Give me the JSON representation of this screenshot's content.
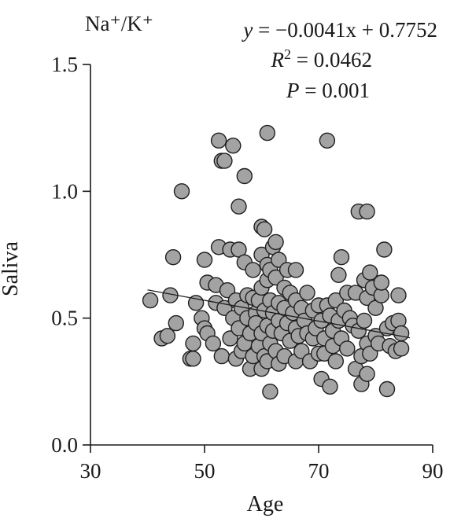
{
  "chart_data": {
    "type": "scatter",
    "panel_label": "Na⁺/K⁺",
    "xlabel": "Age",
    "ylabel": "Saliva",
    "xlim": [
      30,
      90
    ],
    "ylim": [
      0.0,
      1.5
    ],
    "x_ticks": [
      "30",
      "50",
      "70",
      "90"
    ],
    "y_ticks": [
      "0.0",
      "0.5",
      "1.0",
      "1.5"
    ],
    "annotations": {
      "equation": "y = −0.0041x + 0.7752",
      "r2": "R2 = 0.0462",
      "p": "P = 0.001"
    },
    "regression": {
      "slope": -0.0041,
      "intercept": 0.7752,
      "x_range": [
        40,
        86
      ]
    },
    "colors": {
      "marker_fill": "#a3a3a3",
      "marker_edge": "#1f1f1f",
      "line": "#1f1f1f",
      "axis": "#1a1a1a"
    },
    "grid": false,
    "points": [
      [
        40.5,
        0.57
      ],
      [
        42.5,
        0.42
      ],
      [
        43.5,
        0.43
      ],
      [
        44.0,
        0.59
      ],
      [
        44.5,
        0.74
      ],
      [
        45.0,
        0.48
      ],
      [
        46.0,
        1.0
      ],
      [
        47.5,
        0.34
      ],
      [
        48.0,
        0.34
      ],
      [
        48.0,
        0.4
      ],
      [
        48.5,
        0.56
      ],
      [
        49.5,
        0.5
      ],
      [
        50.0,
        0.46
      ],
      [
        50.0,
        0.73
      ],
      [
        50.5,
        0.64
      ],
      [
        50.5,
        0.44
      ],
      [
        51.5,
        0.4
      ],
      [
        52.0,
        0.63
      ],
      [
        52.0,
        0.56
      ],
      [
        52.5,
        0.78
      ],
      [
        52.5,
        1.2
      ],
      [
        53.0,
        1.12
      ],
      [
        53.0,
        0.35
      ],
      [
        53.5,
        1.12
      ],
      [
        53.5,
        0.54
      ],
      [
        54.0,
        0.61
      ],
      [
        54.5,
        0.77
      ],
      [
        54.5,
        0.42
      ],
      [
        55.0,
        1.18
      ],
      [
        55.0,
        0.5
      ],
      [
        55.5,
        0.34
      ],
      [
        55.5,
        0.57
      ],
      [
        56.0,
        0.94
      ],
      [
        56.0,
        0.77
      ],
      [
        56.0,
        0.46
      ],
      [
        56.5,
        0.54
      ],
      [
        56.5,
        0.37
      ],
      [
        57.0,
        1.06
      ],
      [
        57.0,
        0.72
      ],
      [
        57.0,
        0.4
      ],
      [
        57.5,
        0.59
      ],
      [
        57.5,
        0.5
      ],
      [
        58.0,
        0.3
      ],
      [
        58.0,
        0.44
      ],
      [
        58.5,
        0.69
      ],
      [
        58.5,
        0.58
      ],
      [
        58.5,
        0.35
      ],
      [
        59.0,
        0.52
      ],
      [
        59.0,
        0.48
      ],
      [
        59.5,
        0.39
      ],
      [
        59.5,
        0.57
      ],
      [
        60.0,
        0.86
      ],
      [
        60.0,
        0.75
      ],
      [
        60.0,
        0.62
      ],
      [
        60.0,
        0.44
      ],
      [
        60.0,
        0.3
      ],
      [
        60.5,
        0.85
      ],
      [
        60.5,
        0.53
      ],
      [
        60.5,
        0.35
      ],
      [
        61.0,
        1.23
      ],
      [
        61.0,
        0.71
      ],
      [
        61.0,
        0.65
      ],
      [
        61.0,
        0.47
      ],
      [
        61.0,
        0.33
      ],
      [
        61.5,
        0.69
      ],
      [
        61.5,
        0.57
      ],
      [
        61.5,
        0.4
      ],
      [
        61.5,
        0.21
      ],
      [
        62.0,
        0.78
      ],
      [
        62.0,
        0.52
      ],
      [
        62.0,
        0.45
      ],
      [
        62.5,
        0.8
      ],
      [
        62.5,
        0.66
      ],
      [
        62.5,
        0.37
      ],
      [
        63.0,
        0.73
      ],
      [
        63.0,
        0.56
      ],
      [
        63.0,
        0.49
      ],
      [
        63.0,
        0.32
      ],
      [
        63.5,
        0.44
      ],
      [
        64.0,
        0.62
      ],
      [
        64.0,
        0.54
      ],
      [
        64.0,
        0.35
      ],
      [
        64.5,
        0.69
      ],
      [
        64.5,
        0.48
      ],
      [
        65.0,
        0.6
      ],
      [
        65.0,
        0.41
      ],
      [
        65.5,
        0.52
      ],
      [
        66.0,
        0.69
      ],
      [
        66.0,
        0.57
      ],
      [
        66.0,
        0.46
      ],
      [
        66.0,
        0.33
      ],
      [
        66.5,
        0.43
      ],
      [
        67.0,
        0.54
      ],
      [
        67.0,
        0.37
      ],
      [
        67.5,
        0.49
      ],
      [
        68.0,
        0.6
      ],
      [
        68.0,
        0.44
      ],
      [
        68.5,
        0.33
      ],
      [
        69.0,
        0.53
      ],
      [
        69.0,
        0.42
      ],
      [
        69.5,
        0.46
      ],
      [
        70.0,
        0.55
      ],
      [
        70.0,
        0.36
      ],
      [
        70.5,
        0.49
      ],
      [
        70.5,
        0.26
      ],
      [
        71.0,
        0.42
      ],
      [
        71.0,
        0.36
      ],
      [
        71.5,
        1.2
      ],
      [
        71.5,
        0.55
      ],
      [
        72.0,
        0.51
      ],
      [
        72.0,
        0.23
      ],
      [
        72.5,
        0.45
      ],
      [
        72.5,
        0.39
      ],
      [
        73.0,
        0.57
      ],
      [
        73.0,
        0.33
      ],
      [
        73.5,
        0.67
      ],
      [
        73.5,
        0.49
      ],
      [
        74.0,
        0.74
      ],
      [
        74.0,
        0.42
      ],
      [
        74.5,
        0.53
      ],
      [
        75.0,
        0.38
      ],
      [
        75.0,
        0.6
      ],
      [
        75.5,
        0.5
      ],
      [
        76.0,
        0.47
      ],
      [
        76.5,
        0.6
      ],
      [
        76.5,
        0.3
      ],
      [
        77.0,
        0.92
      ],
      [
        77.0,
        0.45
      ],
      [
        77.5,
        0.24
      ],
      [
        77.5,
        0.35
      ],
      [
        78.0,
        0.65
      ],
      [
        78.0,
        0.49
      ],
      [
        78.5,
        0.92
      ],
      [
        78.5,
        0.58
      ],
      [
        78.5,
        0.4
      ],
      [
        78.5,
        0.28
      ],
      [
        79.0,
        0.68
      ],
      [
        79.0,
        0.36
      ],
      [
        79.5,
        0.62
      ],
      [
        80.0,
        0.54
      ],
      [
        80.0,
        0.43
      ],
      [
        80.5,
        0.4
      ],
      [
        81.0,
        0.59
      ],
      [
        81.0,
        0.64
      ],
      [
        81.5,
        0.77
      ],
      [
        82.0,
        0.46
      ],
      [
        82.0,
        0.22
      ],
      [
        82.5,
        0.39
      ],
      [
        83.0,
        0.48
      ],
      [
        83.5,
        0.37
      ],
      [
        84.0,
        0.49
      ],
      [
        84.0,
        0.59
      ],
      [
        84.5,
        0.44
      ],
      [
        84.5,
        0.38
      ]
    ]
  }
}
